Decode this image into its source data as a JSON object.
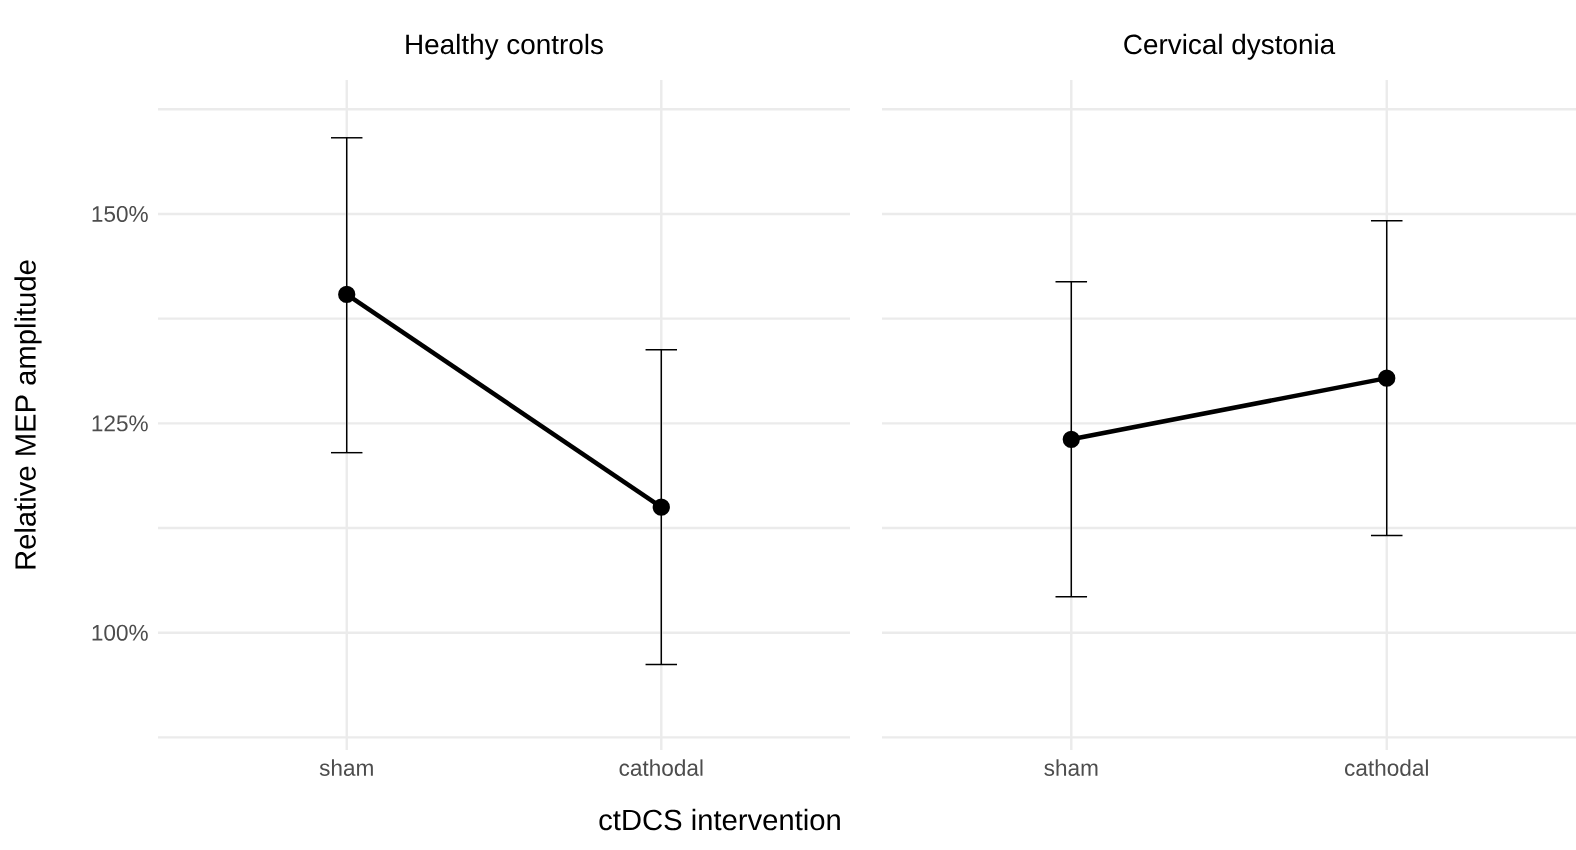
{
  "chart_data": [
    {
      "type": "line",
      "title": "Healthy controls",
      "xlabel": "ctDCS intervention",
      "ylabel": "Relative MEP amplitude",
      "categories": [
        "sham",
        "cathodal"
      ],
      "series": [
        {
          "color": "#000000",
          "values": [
            140.4,
            115.0
          ],
          "errors": [
            [
              121.5,
              159.1
            ],
            [
              96.2,
              133.8
            ]
          ]
        }
      ],
      "ylim": [
        86,
        166
      ],
      "yticks": [
        {
          "value": 87.5,
          "label": null
        },
        {
          "value": 100,
          "label": "100%"
        },
        {
          "value": 112.5,
          "label": null
        },
        {
          "value": 125,
          "label": "125%"
        },
        {
          "value": 137.5,
          "label": null
        },
        {
          "value": 150,
          "label": "150%"
        },
        {
          "value": 162.5,
          "label": null
        }
      ],
      "grid": true,
      "marker": "circle",
      "line_style": "solid"
    },
    {
      "type": "line",
      "title": "Cervical dystonia",
      "categories": [
        "sham",
        "cathodal"
      ],
      "series": [
        {
          "color": "#000000",
          "values": [
            123.1,
            130.4
          ],
          "errors": [
            [
              104.3,
              141.9
            ],
            [
              111.6,
              149.2
            ]
          ]
        }
      ],
      "ylim": [
        86,
        166
      ],
      "yticks": [
        {
          "value": 87.5,
          "label": null
        },
        {
          "value": 100,
          "label": null
        },
        {
          "value": 112.5,
          "label": null
        },
        {
          "value": 125,
          "label": null
        },
        {
          "value": 137.5,
          "label": null
        },
        {
          "value": 150,
          "label": null
        },
        {
          "value": 162.5,
          "label": null
        }
      ],
      "grid": true,
      "marker": "circle",
      "line_style": "solid",
      "tick_labels": "x"
    }
  ]
}
